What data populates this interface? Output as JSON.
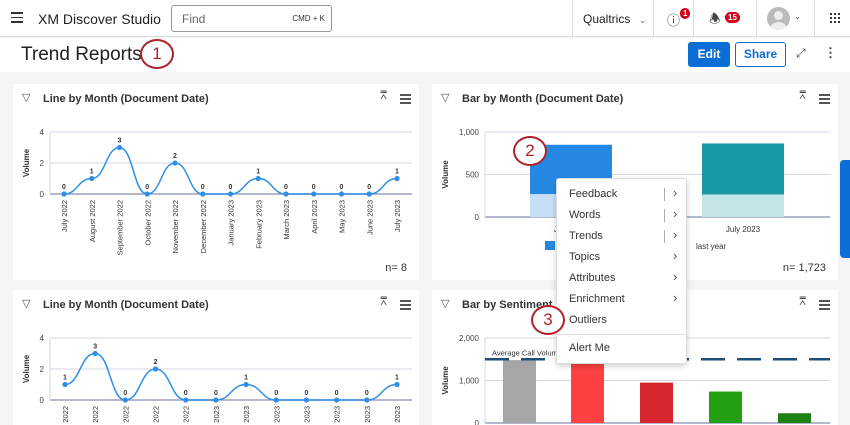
{
  "header": {
    "app_title": "XM Discover Studio",
    "search_placeholder": "Find",
    "search_shortcut": "CMD + K",
    "org": "Qualtrics",
    "info_badge": "1",
    "notif_badge": "15"
  },
  "page": {
    "title": "Trend Reports",
    "edit_label": "Edit",
    "share_label": "Share"
  },
  "steps": [
    "1",
    "2",
    "3"
  ],
  "colors": {
    "accent": "#0b6ed6",
    "line": "#2f8fe8",
    "step_circle": "#b0222a"
  },
  "chart_data": [
    {
      "type": "line",
      "title": "Line by Month (Document Date)",
      "ylabel": "Volume",
      "ylim": [
        0,
        4
      ],
      "yticks": [
        "0",
        "2",
        "4"
      ],
      "categories": [
        "July 2022",
        "August 2022",
        "September 2022",
        "October 2022",
        "November 2022",
        "December 2022",
        "January 2023",
        "February 2023",
        "March 2023",
        "April 2023",
        "May 2023",
        "June 2023",
        "July 2023"
      ],
      "values": [
        0,
        1,
        3,
        0,
        2,
        0,
        0,
        1,
        0,
        0,
        0,
        0,
        1
      ],
      "n_label": "n= 8"
    },
    {
      "type": "bar",
      "title": "Bar by Month (Document Date)",
      "ylabel": "Volume",
      "ylim": [
        0,
        1000
      ],
      "yticks": [
        "0",
        "500",
        "1,000"
      ],
      "categories": [
        "July 2022",
        "July 2023"
      ],
      "series": [
        {
          "values": [
            270,
            265
          ],
          "colors": [
            "#c6dff6",
            "#c4e5e6"
          ]
        },
        {
          "values": [
            580,
            600
          ],
          "colors": [
            "#2589e3",
            "#1a98a3"
          ]
        }
      ],
      "legend_visible_text": "last year",
      "n_label": "n= 1,723"
    },
    {
      "type": "line",
      "title": "Line by Month (Document Date)",
      "ylabel": "Volume",
      "ylim": [
        0,
        4
      ],
      "yticks": [
        "0",
        "2",
        "4"
      ],
      "categories": [
        "2022",
        "2022",
        "2022",
        "2022",
        "2022",
        "2023",
        "2023",
        "2023",
        "2023",
        "2023",
        "2023",
        "2023"
      ],
      "values": [
        1,
        3,
        0,
        2,
        0,
        0,
        1,
        0,
        0,
        0,
        0,
        1
      ]
    },
    {
      "type": "bar",
      "title": "Bar by Sentiment",
      "ylabel": "Volume",
      "ylim": [
        0,
        2000
      ],
      "yticks": [
        "0",
        "1,000",
        "2,000"
      ],
      "values": [
        1480,
        1550,
        950,
        740,
        230
      ],
      "colors": [
        "#a6a6a6",
        "#fb4141",
        "#d7262e",
        "#23a012",
        "#1e8213"
      ],
      "reference_line": {
        "label": "Average Call Volum",
        "value": 1500,
        "color": "#1f4e79"
      }
    }
  ],
  "context_menu": {
    "items": [
      {
        "label": "Feedback",
        "submenu": true,
        "split": true
      },
      {
        "label": "Words",
        "submenu": true,
        "split": true
      },
      {
        "label": "Trends",
        "submenu": true,
        "split": true
      },
      {
        "label": "Topics",
        "submenu": true
      },
      {
        "label": "Attributes",
        "submenu": true
      },
      {
        "label": "Enrichment",
        "submenu": true
      },
      {
        "label": "Outliers",
        "submenu": false
      }
    ],
    "alert_label": "Alert Me"
  }
}
